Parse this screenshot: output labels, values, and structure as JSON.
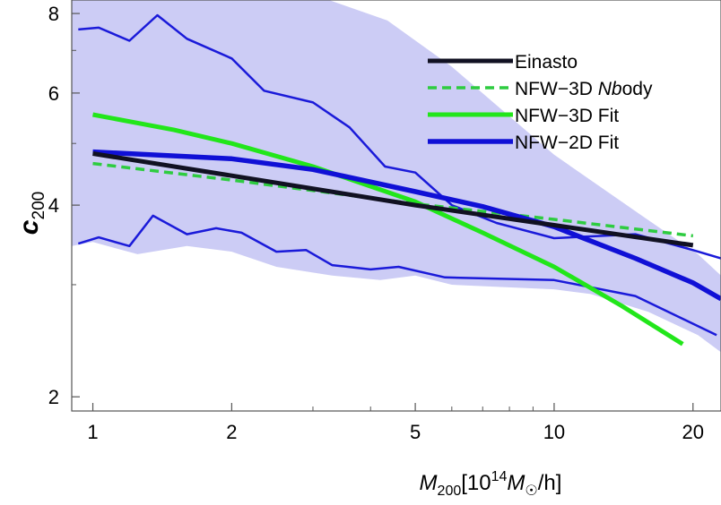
{
  "chart_data": {
    "type": "line",
    "xscale": "log",
    "yscale": "log",
    "xlim": [
      0.9,
      23
    ],
    "ylim": [
      1.9,
      8.4
    ],
    "xticks": [
      1,
      2,
      5,
      10,
      20
    ],
    "yticks": [
      2,
      4,
      6,
      8
    ],
    "xlabel": {
      "main": "M",
      "sub": "200",
      "bracket_open": "[10",
      "sup": "14",
      "mass": "M",
      "mass_sub": "☉",
      "tail": "/h]"
    },
    "ylabel": {
      "main": "c",
      "sub": "200"
    },
    "band": {
      "fill": "#ccccf5",
      "upper": [
        [
          0.9,
          8.4
        ],
        [
          2.9,
          8.4
        ],
        [
          3.25,
          8.4
        ],
        [
          4.35,
          7.8
        ],
        [
          6.0,
          6.6
        ],
        [
          10.0,
          4.8
        ],
        [
          15.5,
          3.85
        ],
        [
          20.5,
          3.35
        ],
        [
          23.0,
          3.1
        ]
      ],
      "lower": [
        [
          23.0,
          2.35
        ],
        [
          20.5,
          2.5
        ],
        [
          16.0,
          2.72
        ],
        [
          12.0,
          2.9
        ],
        [
          10.0,
          2.95
        ],
        [
          6.0,
          3.0
        ],
        [
          5.0,
          3.1
        ],
        [
          4.2,
          3.05
        ],
        [
          3.3,
          3.1
        ],
        [
          2.5,
          3.2
        ],
        [
          2.0,
          3.38
        ],
        [
          1.6,
          3.45
        ],
        [
          1.25,
          3.35
        ],
        [
          1.0,
          3.5
        ],
        [
          0.9,
          3.45
        ]
      ]
    },
    "envelope_color": "#1a1ad9",
    "upper_envelope": [
      [
        0.93,
        7.55
      ],
      [
        1.03,
        7.6
      ],
      [
        1.2,
        7.25
      ],
      [
        1.38,
        7.95
      ],
      [
        1.6,
        7.3
      ],
      [
        2.0,
        6.8
      ],
      [
        2.35,
        6.05
      ],
      [
        3.0,
        5.8
      ],
      [
        3.6,
        5.3
      ],
      [
        4.3,
        4.6
      ],
      [
        5.0,
        4.5
      ],
      [
        6.0,
        4.0
      ],
      [
        7.5,
        3.75
      ],
      [
        10.0,
        3.55
      ],
      [
        15.0,
        3.6
      ],
      [
        20.0,
        3.4
      ],
      [
        23.0,
        3.3
      ]
    ],
    "lower_envelope": [
      [
        0.93,
        3.48
      ],
      [
        1.03,
        3.56
      ],
      [
        1.2,
        3.45
      ],
      [
        1.35,
        3.85
      ],
      [
        1.6,
        3.6
      ],
      [
        1.85,
        3.68
      ],
      [
        2.1,
        3.62
      ],
      [
        2.5,
        3.38
      ],
      [
        2.9,
        3.4
      ],
      [
        3.3,
        3.22
      ],
      [
        4.0,
        3.17
      ],
      [
        4.6,
        3.2
      ],
      [
        5.8,
        3.08
      ],
      [
        10.0,
        3.05
      ],
      [
        15.0,
        2.88
      ],
      [
        22.5,
        2.5
      ]
    ],
    "series": [
      {
        "name": "Einasto",
        "color": "#111122",
        "width": 5,
        "dash": "",
        "points": [
          [
            1.0,
            4.82
          ],
          [
            2.0,
            4.45
          ],
          [
            5.0,
            4.0
          ],
          [
            10.0,
            3.72
          ],
          [
            20.0,
            3.46
          ]
        ]
      },
      {
        "name": "NFW−3D Nbody",
        "label_parts": [
          "NFW−3D ",
          "Nb",
          "ody"
        ],
        "color": "#2ecc40",
        "width": 3.5,
        "dash": "10,6",
        "points": [
          [
            1.0,
            4.65
          ],
          [
            2.0,
            4.38
          ],
          [
            5.0,
            4.02
          ],
          [
            10.0,
            3.8
          ],
          [
            20.0,
            3.58
          ]
        ]
      },
      {
        "name": "NFW−3D Fit",
        "color": "#22e61a",
        "width": 5,
        "dash": "",
        "points": [
          [
            1.0,
            5.55
          ],
          [
            1.5,
            5.25
          ],
          [
            2.0,
            5.0
          ],
          [
            3.0,
            4.6
          ],
          [
            5.0,
            4.05
          ],
          [
            7.0,
            3.62
          ],
          [
            10.0,
            3.2
          ],
          [
            14.0,
            2.78
          ],
          [
            19.0,
            2.42
          ]
        ]
      },
      {
        "name": "NFW−2D Fit",
        "color": "#1010d6",
        "width": 5.5,
        "dash": "",
        "points": [
          [
            1.0,
            4.85
          ],
          [
            2.0,
            4.73
          ],
          [
            3.0,
            4.55
          ],
          [
            5.0,
            4.2
          ],
          [
            7.0,
            3.98
          ],
          [
            10.0,
            3.7
          ],
          [
            15.0,
            3.3
          ],
          [
            20.0,
            3.02
          ],
          [
            23.0,
            2.85
          ]
        ]
      }
    ],
    "legend_position": "top-right",
    "grid": false
  }
}
